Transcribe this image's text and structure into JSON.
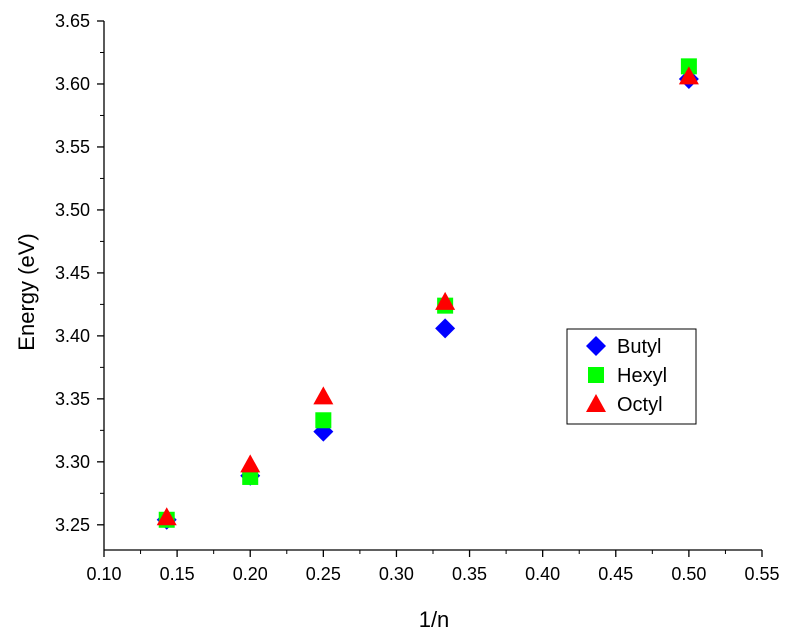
{
  "chart_data": {
    "type": "scatter",
    "title": "",
    "xlabel": "1/n",
    "ylabel": "Energy (eV)",
    "xlim": [
      0.1,
      0.55
    ],
    "ylim": [
      3.23,
      3.65
    ],
    "x_ticks": [
      "0.10",
      "0.15",
      "0.20",
      "0.25",
      "0.30",
      "0.35",
      "0.40",
      "0.45",
      "0.50",
      "0.55"
    ],
    "y_ticks": [
      "3.25",
      "3.30",
      "3.35",
      "3.40",
      "3.45",
      "3.50",
      "3.55",
      "3.60",
      "3.65"
    ],
    "grid": false,
    "legend_position": "right-middle",
    "series": [
      {
        "name": "Butyl",
        "marker": "diamond",
        "color": "#0000ff",
        "x": [
          0.1429,
          0.2,
          0.25,
          0.3333,
          0.5
        ],
        "y": [
          3.254,
          3.289,
          3.324,
          3.406,
          3.604
        ]
      },
      {
        "name": "Hexyl",
        "marker": "square",
        "color": "#00ff00",
        "x": [
          0.1429,
          0.2,
          0.25,
          0.3333,
          0.5
        ],
        "y": [
          3.254,
          3.288,
          3.333,
          3.424,
          3.614
        ]
      },
      {
        "name": "Octyl",
        "marker": "triangle",
        "color": "#ff0000",
        "x": [
          0.1429,
          0.2,
          0.25,
          0.3333,
          0.5
        ],
        "y": [
          3.256,
          3.298,
          3.352,
          3.427,
          3.606
        ]
      }
    ]
  }
}
